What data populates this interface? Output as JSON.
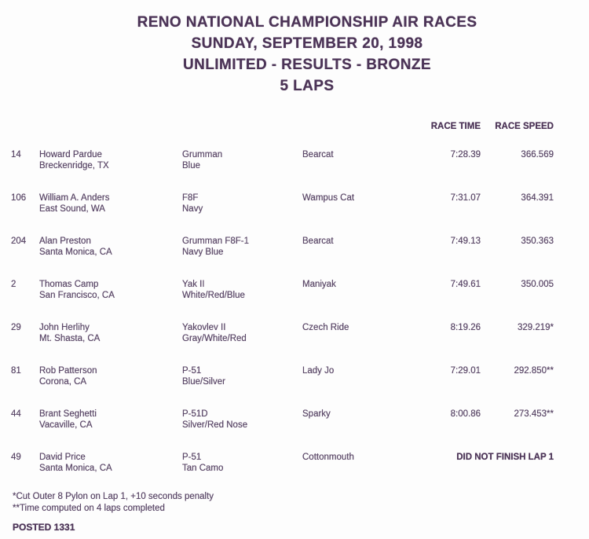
{
  "document": {
    "title_lines": [
      "RENO NATIONAL CHAMPIONSHIP AIR RACES",
      "SUNDAY, SEPTEMBER 20, 1998",
      "UNLIMITED - RESULTS - BRONZE",
      "5 LAPS"
    ],
    "columns": {
      "race_time": "RACE TIME",
      "race_speed": "RACE SPEED"
    },
    "results": [
      {
        "race_number": "14",
        "pilot": "Howard Pardue",
        "hometown": "Breckenridge, TX",
        "aircraft": "Grumman",
        "colors": "Blue",
        "race_plane": "Bearcat",
        "race_time": "7:28.39",
        "race_speed": "366.569",
        "status": ""
      },
      {
        "race_number": "106",
        "pilot": "William A. Anders",
        "hometown": "East Sound, WA",
        "aircraft": "F8F",
        "colors": "Navy",
        "race_plane": "Wampus Cat",
        "race_time": "7:31.07",
        "race_speed": "364.391",
        "status": ""
      },
      {
        "race_number": "204",
        "pilot": "Alan Preston",
        "hometown": "Santa Monica, CA",
        "aircraft": "Grumman F8F-1",
        "colors": "Navy Blue",
        "race_plane": "Bearcat",
        "race_time": "7:49.13",
        "race_speed": "350.363",
        "status": ""
      },
      {
        "race_number": "2",
        "pilot": "Thomas Camp",
        "hometown": "San Francisco, CA",
        "aircraft": "Yak II",
        "colors": "White/Red/Blue",
        "race_plane": "Maniyak",
        "race_time": "7:49.61",
        "race_speed": "350.005",
        "status": ""
      },
      {
        "race_number": "29",
        "pilot": "John Herlihy",
        "hometown": "Mt. Shasta, CA",
        "aircraft": "Yakovlev II",
        "colors": "Gray/White/Red",
        "race_plane": "Czech Ride",
        "race_time": "8:19.26",
        "race_speed": "329.219*",
        "status": ""
      },
      {
        "race_number": "81",
        "pilot": "Rob Patterson",
        "hometown": "Corona, CA",
        "aircraft": "P-51",
        "colors": "Blue/Silver",
        "race_plane": "Lady Jo",
        "race_time": "7:29.01",
        "race_speed": "292.850**",
        "status": ""
      },
      {
        "race_number": "44",
        "pilot": "Brant Seghetti",
        "hometown": "Vacaville, CA",
        "aircraft": "P-51D",
        "colors": "Silver/Red Nose",
        "race_plane": "Sparky",
        "race_time": "8:00.86",
        "race_speed": "273.453**",
        "status": ""
      },
      {
        "race_number": "49",
        "pilot": "David Price",
        "hometown": "Santa Monica, CA",
        "aircraft": "P-51",
        "colors": "Tan Camo",
        "race_plane": "Cottonmouth",
        "race_time": "",
        "race_speed": "",
        "status": "DID NOT FINISH LAP 1"
      }
    ],
    "footnotes": [
      "*Cut Outer 8 Pylon on Lap 1, +10 seconds penalty",
      "**Time computed on 4 laps completed"
    ],
    "posted": "POSTED 1331"
  },
  "colors": {
    "ink_dark": "#4c3457",
    "ink_body": "#5b4868",
    "background": "#fdfdfd"
  }
}
